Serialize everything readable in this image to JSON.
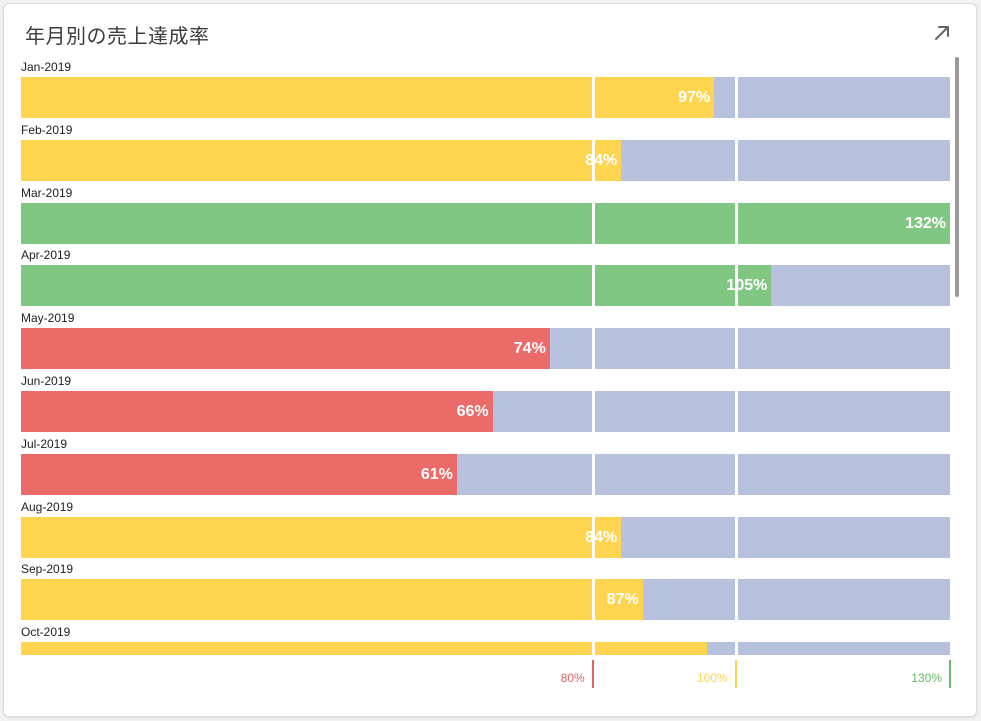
{
  "card": {
    "title": "年月別の売上達成率",
    "expand_icon": "arrow-up-right-icon"
  },
  "colors": {
    "below": "#eb6b69",
    "mid": "#ffd54f",
    "above": "#81c784",
    "remainder": "#b8c1de"
  },
  "chart_data": {
    "type": "bar",
    "orientation": "horizontal",
    "categories": [
      "Jan-2019",
      "Feb-2019",
      "Mar-2019",
      "Apr-2019",
      "May-2019",
      "Jun-2019",
      "Jul-2019",
      "Aug-2019",
      "Sep-2019",
      "Oct-2019"
    ],
    "values": [
      97,
      84,
      132,
      105,
      74,
      66,
      61,
      84,
      87,
      96
    ],
    "value_labels": [
      "97%",
      "84%",
      "132%",
      "105%",
      "74%",
      "66%",
      "61%",
      "84%",
      "87%",
      ""
    ],
    "xlim": [
      0,
      130
    ],
    "thresholds": [
      {
        "value": 80,
        "label": "80%",
        "color": "#e06666"
      },
      {
        "value": 100,
        "label": "100%",
        "color": "#ffd54f"
      },
      {
        "value": 130,
        "label": "130%",
        "color": "#66bb6a"
      }
    ]
  }
}
